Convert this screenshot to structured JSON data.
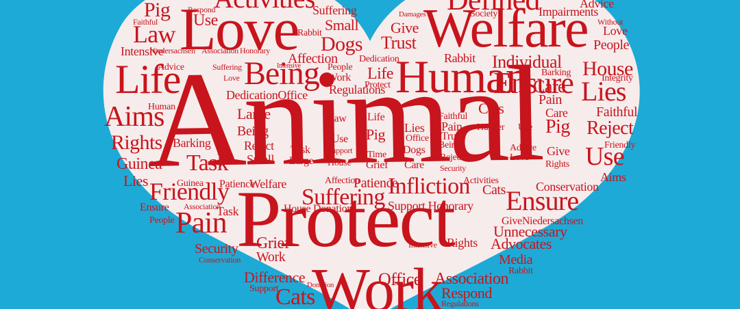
{
  "image": {
    "description_colors": {
      "background": "#1eaad6",
      "heart": "#f6ecec",
      "text": "#c8141c"
    }
  },
  "words": {
    "animal": "Animal",
    "protect": "Protect",
    "work": "Work",
    "love": "Love",
    "welfare": "Welfare",
    "human": "Human",
    "being": "Being",
    "defined": "Defined",
    "activities": "Activities",
    "life": "Life",
    "aims": "Aims",
    "rights": "Rights",
    "guinea": "Guinea",
    "lies": "Lies",
    "friendly": "Friendly",
    "task": "Task",
    "pain": "Pain",
    "suffering": "Suffering",
    "infliction": "Infliction",
    "ensure": "Ensure",
    "use": "Use",
    "reject": "Reject",
    "house": "House",
    "faithful": "Faithful",
    "people": "People",
    "care": "Care",
    "individual": "Individual",
    "regulations": "Regulations",
    "dedication": "Dedication",
    "office": "Office",
    "difference": "Difference",
    "cats": "Cats",
    "association": "Association",
    "advocates": "Advocates",
    "unnecessary": "Unnecessary",
    "conservation": "Conservation",
    "media": "Media",
    "grief": "Grief",
    "security": "Security",
    "dogs": "Dogs",
    "trust": "Trust",
    "give": "Give",
    "small": "Small",
    "pig": "Pig",
    "law": "Law",
    "intensive": "Intensive",
    "affection": "Affection",
    "rabbit": "Rabbit",
    "impairments": "Impairments",
    "advice": "Advice",
    "barking": "Barking",
    "large": "Large",
    "hunger": "Hunger",
    "patience": "Patience",
    "honorary": "Honorary",
    "support": "Support",
    "donation": "Donation",
    "respond": "Respond",
    "niedersachsen": "Niedersachsen",
    "society": "Society",
    "damages": "Damages",
    "integrity": "Integrity",
    "without": "Without",
    "time": "Time",
    "house_donation": "House Donation",
    "support_honorary": "Support Honorary",
    "give_niedersachsen": "GiveNiedersachsen",
    "dedication_office": "DedicationOffice",
    "ensure_word": "Ensure",
    "faithful_word": "Faithful"
  }
}
